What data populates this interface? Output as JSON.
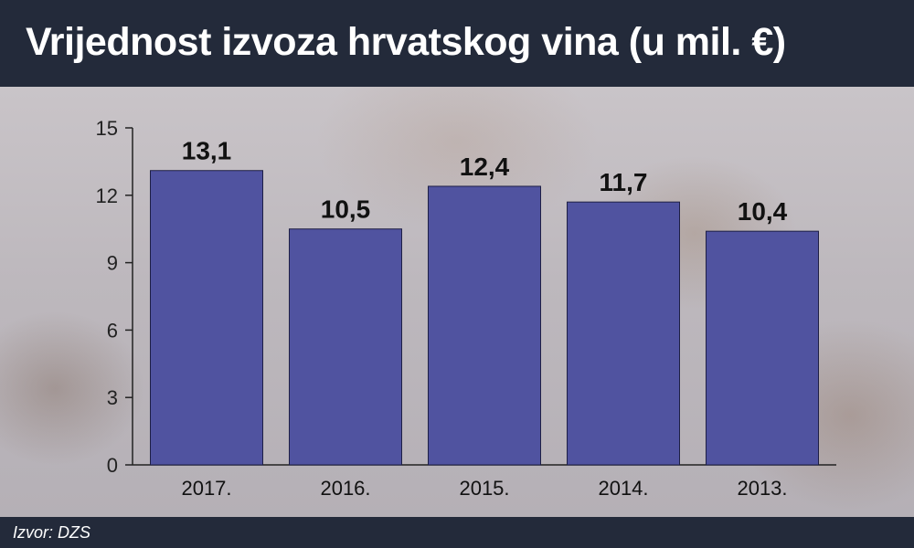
{
  "title": "Vrijednost izvoza hrvatskog vina (u mil. €)",
  "source": "Izvor: DZS",
  "colors": {
    "header_bg": "#232a3a",
    "bar_fill": "#5053a0",
    "bar_stroke": "#1e1f45",
    "text": "#111111"
  },
  "chart_data": {
    "type": "bar",
    "title": "Vrijednost izvoza hrvatskog vina (u mil. €)",
    "categories": [
      "2017.",
      "2016.",
      "2015.",
      "2014.",
      "2013."
    ],
    "values": [
      13.1,
      10.5,
      12.4,
      11.7,
      10.4
    ],
    "value_labels": [
      "13,1",
      "10,5",
      "12,4",
      "11,7",
      "10,4"
    ],
    "ylim": [
      0,
      15
    ],
    "yticks": [
      0,
      3,
      6,
      9,
      12,
      15
    ],
    "ytick_labels": [
      "0",
      "3",
      "6",
      "9",
      "12",
      "15"
    ],
    "xlabel": "",
    "ylabel": "",
    "grid": false,
    "legend": "none"
  }
}
